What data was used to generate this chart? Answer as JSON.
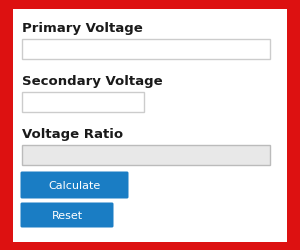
{
  "background_color": "#ffffff",
  "border_color": "#dd1111",
  "labels": [
    "Primary Voltage",
    "Secondary Voltage",
    "Voltage Ratio"
  ],
  "label_fontsize": 9.5,
  "label_color": "#1a1a1a",
  "input_box_color": "#ffffff",
  "input_box_border": "#cccccc",
  "output_box_color": "#e8e8e8",
  "output_box_border": "#bbbbbb",
  "button_calculate_color": "#1a7dc4",
  "button_reset_color": "#1a7dc4",
  "button_text_color": "#ffffff",
  "button_calculate_label": "Calculate",
  "button_reset_label": "Reset",
  "button_fontsize": 8,
  "fig_width": 3.0,
  "fig_height": 2.51,
  "dpi": 100
}
